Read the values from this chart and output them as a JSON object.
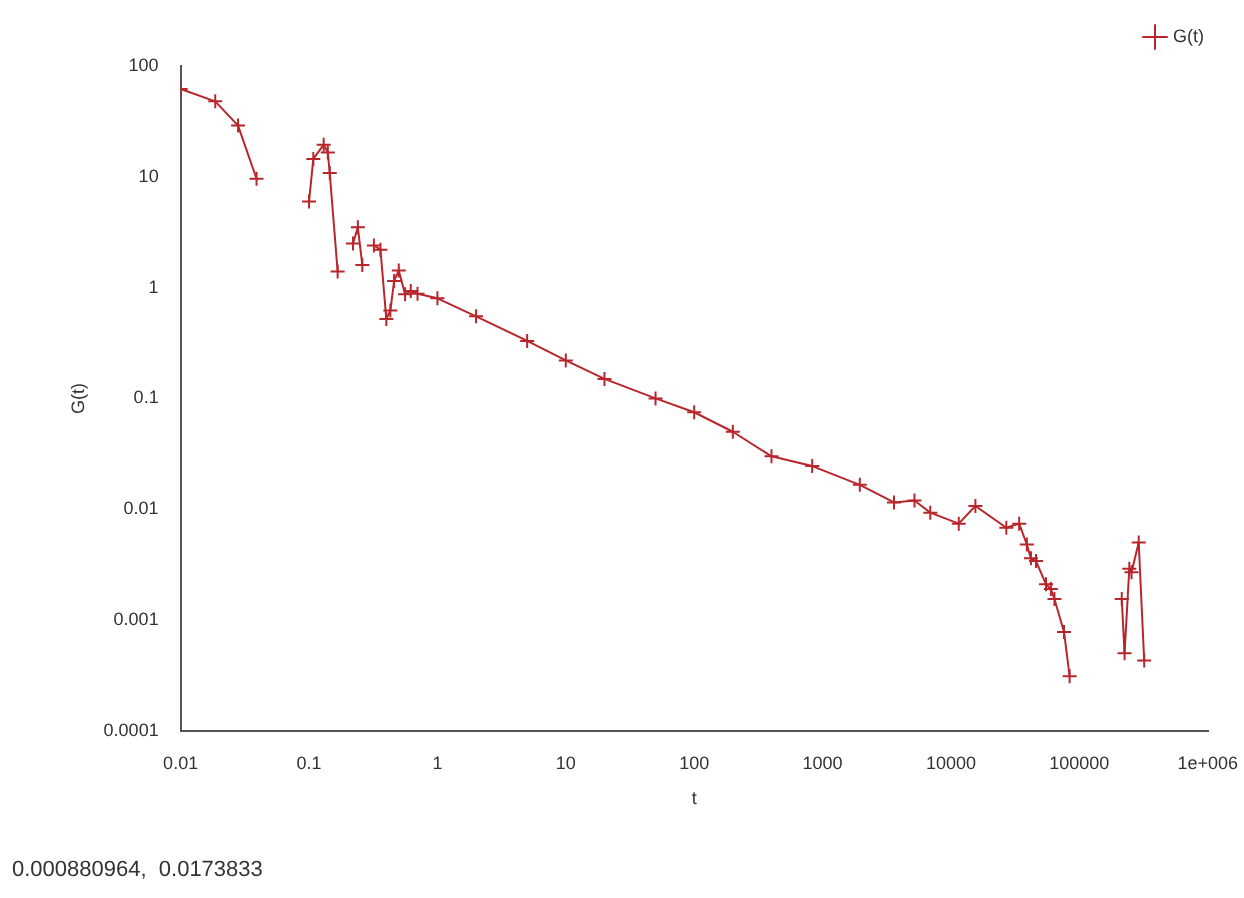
{
  "chart_data": {
    "type": "line",
    "xlabel": "t",
    "ylabel": "G(t)",
    "log": "xy",
    "grid": false,
    "legend": "top right",
    "marker": "cross",
    "line_style": "solid",
    "xlim": [
      0.01,
      1000000
    ],
    "xticks": [
      0.01,
      0.1,
      1,
      10,
      100,
      1000,
      10000,
      100000,
      {
        "value": 1000000,
        "label": "1e+006"
      }
    ],
    "ylim": [
      0.0001,
      100
    ],
    "yticks": [
      0.0001,
      0.001,
      0.01,
      0.1,
      1,
      10,
      100
    ],
    "annotations": [
      "0.000880964,  0.0173833"
    ],
    "series": [
      {
        "name": "G(t)",
        "color": "#b8262c",
        "x": [
          0.01,
          0.0186,
          0.028,
          0.039,
          0.06,
          0.1,
          0.108,
          0.13,
          0.14,
          0.145,
          0.167,
          0.19,
          0.22,
          0.24,
          0.26,
          0.29,
          0.32,
          0.36,
          0.4,
          0.43,
          0.46,
          0.5,
          0.56,
          0.62,
          0.7,
          1,
          2,
          5,
          10,
          20,
          50,
          100,
          200,
          400,
          830,
          1950,
          3600,
          5200,
          6900,
          11500,
          15500,
          27000,
          34000,
          39000,
          42000,
          46000,
          55000,
          60000,
          64000,
          76000,
          84000,
          150000,
          214000,
          225000,
          245000,
          255000,
          290000,
          320000
        ],
        "values": [
          62,
          48,
          29,
          9.6,
          null,
          6,
          14.5,
          19.5,
          16.6,
          10.8,
          1.4,
          null,
          2.5,
          3.5,
          1.6,
          null,
          2.4,
          2.2,
          0.52,
          0.62,
          1.15,
          1.43,
          0.87,
          0.93,
          0.88,
          0.8,
          0.55,
          0.33,
          0.22,
          0.15,
          0.1,
          0.075,
          0.05,
          0.03,
          0.0245,
          0.0166,
          0.0115,
          0.012,
          0.0093,
          0.0074,
          0.0107,
          0.0068,
          0.0074,
          0.0048,
          0.0036,
          0.0034,
          0.0021,
          0.0019,
          0.00155,
          0.00078,
          0.00031,
          null,
          0.00155,
          0.0005,
          0.0029,
          0.0027,
          0.005,
          0.00043
        ]
      }
    ]
  }
}
